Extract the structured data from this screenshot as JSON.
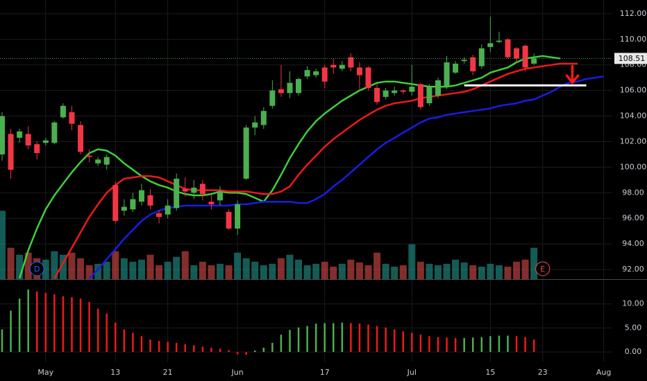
{
  "chart_data": [
    {
      "type": "candlestick",
      "categories": [
        null,
        null,
        null,
        null,
        null,
        "May",
        null,
        null,
        null,
        null,
        null,
        null,
        null,
        "13",
        null,
        null,
        null,
        null,
        null,
        "21",
        null,
        null,
        null,
        null,
        null,
        null,
        null,
        "Jun",
        null,
        null,
        null,
        null,
        null,
        null,
        null,
        null,
        null,
        "17",
        null,
        null,
        null,
        null,
        null,
        null,
        null,
        null,
        null,
        "Jul",
        null,
        null,
        null,
        null,
        null,
        null,
        null,
        null,
        "15",
        null,
        null,
        null,
        null,
        null,
        "23",
        null,
        null,
        null,
        null,
        null,
        null,
        "Aug"
      ],
      "open": [
        101.0,
        102.6,
        102.3,
        102.6,
        101.8,
        101.9,
        101.9,
        103.9,
        104.3,
        103.3,
        100.9,
        100.3,
        100.2,
        98.6,
        96.6,
        96.7,
        97.3,
        97.8,
        96.4,
        96.3,
        96.8,
        98.3,
        98.0,
        98.7,
        97.3,
        97.4,
        96.5,
        95.2,
        99.1,
        103.1,
        103.3,
        104.8,
        106.1,
        105.8,
        105.8,
        107.1,
        107.2,
        107.8,
        108.0,
        107.7,
        108.6,
        107.8,
        107.8,
        106.2,
        105.5,
        105.8,
        106.0,
        105.9,
        106.5,
        105.0,
        105.6,
        106.3,
        107.4,
        108.3,
        108.6,
        107.9,
        109.4,
        109.8,
        110.0,
        109.3,
        109.5,
        108.1,
        null,
        null,
        null,
        null,
        null,
        null,
        null,
        null
      ],
      "high": [
        104.3,
        103.0,
        103.0,
        103.2,
        102.0,
        102.3,
        103.6,
        105.0,
        104.8,
        103.6,
        101.4,
        100.8,
        101.0,
        98.9,
        97.5,
        98.0,
        98.7,
        98.3,
        96.6,
        97.5,
        99.5,
        99.2,
        99.0,
        99.0,
        97.8,
        98.5,
        96.7,
        97.4,
        103.3,
        104.0,
        104.7,
        106.8,
        108.0,
        107.5,
        107.0,
        107.9,
        107.7,
        108.0,
        108.5,
        108.3,
        108.9,
        108.2,
        107.9,
        106.5,
        106.2,
        106.3,
        106.1,
        108.0,
        106.6,
        106.5,
        107.0,
        108.7,
        108.3,
        108.6,
        108.8,
        109.6,
        111.8,
        110.6,
        110.1,
        109.4,
        109.6,
        108.9,
        null,
        null,
        null,
        null,
        null,
        null,
        null,
        null
      ],
      "low": [
        100.5,
        99.1,
        101.9,
        101.4,
        100.6,
        101.7,
        101.8,
        103.8,
        102.9,
        101.0,
        100.4,
        100.1,
        99.8,
        95.6,
        96.2,
        96.5,
        97.0,
        96.7,
        95.6,
        96.0,
        96.6,
        97.7,
        97.5,
        97.4,
        96.7,
        97.0,
        95.1,
        94.7,
        99.0,
        102.5,
        103.0,
        104.6,
        105.5,
        105.4,
        105.6,
        106.9,
        107.0,
        106.2,
        107.3,
        107.5,
        107.5,
        106.1,
        106.0,
        104.9,
        105.3,
        105.6,
        105.7,
        105.6,
        104.5,
        104.8,
        105.4,
        106.1,
        107.3,
        108.1,
        107.2,
        107.7,
        109.0,
        109.7,
        108.5,
        108.2,
        107.5,
        108.0,
        null,
        null,
        null,
        null,
        null,
        null,
        null,
        null
      ],
      "close": [
        104.0,
        99.8,
        102.8,
        101.7,
        101.1,
        102.1,
        103.5,
        104.8,
        103.4,
        101.2,
        100.8,
        100.6,
        100.8,
        95.8,
        96.9,
        97.5,
        98.2,
        97.0,
        96.1,
        97.0,
        99.1,
        98.1,
        98.4,
        97.9,
        97.1,
        98.1,
        95.2,
        97.1,
        103.1,
        103.5,
        104.4,
        106.0,
        105.8,
        106.6,
        106.9,
        107.6,
        107.5,
        106.7,
        107.8,
        108.0,
        107.8,
        107.2,
        106.2,
        105.1,
        106.0,
        106.0,
        105.9,
        106.3,
        104.7,
        106.3,
        106.8,
        108.2,
        108.1,
        108.4,
        107.5,
        109.3,
        109.7,
        109.9,
        108.6,
        108.5,
        107.8,
        108.51,
        null,
        null,
        null,
        null,
        null,
        null,
        null,
        null
      ],
      "volume": [
        98,
        45,
        35,
        38,
        30,
        28,
        40,
        35,
        38,
        30,
        20,
        22,
        25,
        40,
        30,
        25,
        28,
        35,
        20,
        25,
        32,
        40,
        20,
        25,
        20,
        22,
        20,
        38,
        30,
        25,
        20,
        22,
        30,
        35,
        28,
        20,
        22,
        25,
        18,
        22,
        28,
        24,
        20,
        38,
        22,
        18,
        20,
        50,
        25,
        22,
        20,
        22,
        28,
        24,
        20,
        18,
        22,
        20,
        18,
        25,
        28,
        45,
        null,
        null,
        null,
        null,
        null,
        null,
        null,
        null
      ],
      "vlim": [
        0,
        400
      ],
      "up_color": "#4caf50",
      "down_color": "#f23645",
      "volume_up_color": "#26a69a",
      "volume_down_color": "#ef5350",
      "series": [
        {
          "color": "#3ed13a",
          "values": [
            null,
            null,
            91.3,
            93.5,
            95.2,
            96.7,
            97.8,
            98.7,
            99.6,
            100.4,
            101.1,
            101.4,
            101.3,
            100.9,
            100.3,
            99.8,
            99.3,
            98.9,
            98.6,
            98.4,
            98.1,
            97.9,
            97.8,
            97.8,
            97.9,
            98.1,
            98.0,
            98.0,
            97.9,
            97.6,
            97.3,
            98.2,
            99.4,
            100.7,
            101.8,
            102.8,
            103.6,
            104.2,
            104.7,
            105.2,
            105.6,
            106.0,
            106.3,
            106.6,
            106.7,
            106.7,
            106.6,
            106.5,
            106.4,
            106.3,
            106.3,
            106.3,
            106.4,
            106.6,
            106.8,
            107.0,
            107.4,
            107.6,
            107.8,
            108.2,
            108.5,
            108.6,
            108.7,
            108.6,
            108.5,
            null,
            null,
            null,
            null,
            null
          ]
        },
        {
          "color": "#f01919",
          "values": [
            null,
            null,
            null,
            null,
            null,
            null,
            91.3,
            92.5,
            93.7,
            94.9,
            96.1,
            97.1,
            98.0,
            98.6,
            99.1,
            99.2,
            99.3,
            99.3,
            99.2,
            98.9,
            98.6,
            98.3,
            98.2,
            98.2,
            98.2,
            98.2,
            98.1,
            98.1,
            98.1,
            98.0,
            97.9,
            97.9,
            98.1,
            98.5,
            99.4,
            100.2,
            100.9,
            101.6,
            102.2,
            102.7,
            103.2,
            103.7,
            104.1,
            104.5,
            104.8,
            105.0,
            105.1,
            105.2,
            105.4,
            105.5,
            105.6,
            105.7,
            105.8,
            105.9,
            106.1,
            106.4,
            106.7,
            107.0,
            107.3,
            107.5,
            107.7,
            107.8,
            107.9,
            108.0,
            108.1,
            108.1,
            108.1,
            null,
            null,
            null
          ]
        },
        {
          "color": "#1b1be8",
          "values": [
            null,
            null,
            null,
            null,
            null,
            null,
            null,
            null,
            null,
            null,
            91.3,
            92.0,
            92.8,
            93.6,
            94.4,
            95.1,
            95.8,
            96.3,
            96.6,
            96.8,
            96.9,
            97.0,
            97.0,
            97.0,
            97.0,
            97.0,
            97.0,
            97.1,
            97.1,
            97.2,
            97.3,
            97.3,
            97.3,
            97.3,
            97.2,
            97.2,
            97.5,
            97.9,
            98.5,
            99.0,
            99.6,
            100.2,
            100.8,
            101.4,
            101.9,
            102.3,
            102.7,
            103.1,
            103.5,
            103.8,
            103.9,
            104.1,
            104.2,
            104.3,
            104.4,
            104.5,
            104.6,
            104.8,
            104.9,
            105.0,
            105.2,
            105.3,
            105.6,
            105.9,
            106.3,
            106.6,
            106.7,
            106.9,
            107.0,
            107.1
          ]
        }
      ],
      "ylim": [
        91.24,
        113.08
      ],
      "yticks": [
        {
          "value": 92,
          "label": "92.00"
        },
        {
          "value": 94,
          "label": "94.00"
        },
        {
          "value": 96,
          "label": "96.00"
        },
        {
          "value": 98,
          "label": "98.00"
        },
        {
          "value": 100,
          "label": "100.00"
        },
        {
          "value": 102,
          "label": "102.00"
        },
        {
          "value": 104,
          "label": "104.00"
        },
        {
          "value": 106,
          "label": "106.00"
        },
        {
          "value": 108,
          "label": "108.00"
        },
        {
          "value": 110,
          "label": "110.00"
        },
        {
          "value": 112,
          "label": "112.00"
        }
      ],
      "last_price": {
        "value": 108.51,
        "label": "108.51"
      },
      "support": {
        "value": 106.4,
        "start": 53,
        "end": 67
      },
      "events": [
        {
          "label": "D",
          "index": 4
        },
        {
          "label": "E",
          "index": 62
        }
      ],
      "grid": true
    },
    {
      "type": "bar",
      "values": [
        4.7,
        8.6,
        11.1,
        13.0,
        12.6,
        12.3,
        12.0,
        11.6,
        11.4,
        11.1,
        10.4,
        9.0,
        8.0,
        6.1,
        4.7,
        4.0,
        3.3,
        2.6,
        2.3,
        2.1,
        1.9,
        1.6,
        1.4,
        1.1,
        0.9,
        0.7,
        0.4,
        -0.5,
        -0.6,
        0.3,
        0.9,
        1.9,
        3.6,
        4.6,
        5.1,
        5.4,
        5.9,
        6.0,
        6.0,
        6.1,
        6.0,
        5.9,
        5.7,
        5.4,
        5.1,
        4.7,
        4.3,
        4.0,
        3.6,
        3.3,
        3.1,
        3.0,
        2.9,
        2.9,
        3.0,
        3.1,
        3.3,
        3.4,
        3.4,
        3.3,
        3.1,
        2.6,
        null,
        null,
        null,
        null,
        null,
        null,
        null,
        null
      ],
      "up_color": "#4caf50",
      "down_color": "#f01919",
      "ylim": [
        -2,
        15
      ],
      "yticks": [
        {
          "value": 0,
          "label": "0.00"
        },
        {
          "value": 5,
          "label": "5.00"
        },
        {
          "value": 10,
          "label": "10.00"
        }
      ],
      "grid": true
    }
  ]
}
